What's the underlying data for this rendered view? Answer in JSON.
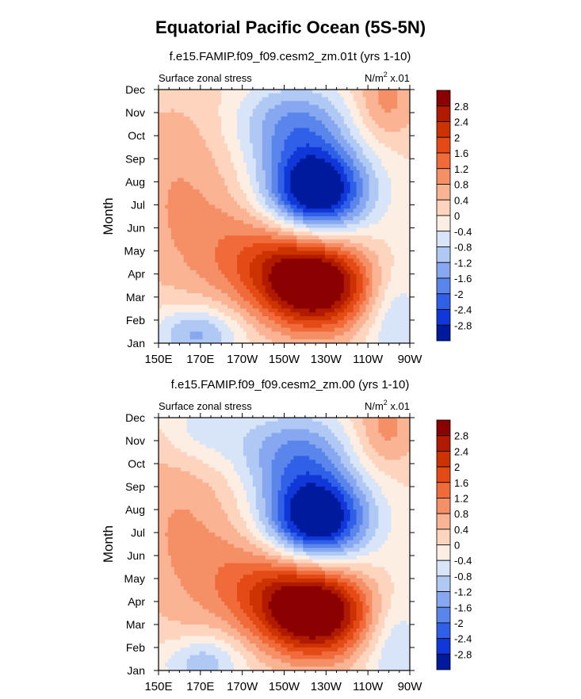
{
  "title": "Equatorial Pacific Ocean (5S-5N)",
  "chart_data": [
    {
      "type": "contour",
      "subtitle": "f.e15.FAMIP.f09_f09.cesm2_zm.01t (yrs 1-10)",
      "left_label": "Surface zonal stress",
      "right_label": {
        "base": "N/m",
        "sup": "2",
        "suffix": " x.01"
      },
      "ylabel": "Month",
      "xticks": [
        "150E",
        "170E",
        "170W",
        "150W",
        "130W",
        "110W",
        "90W"
      ],
      "yticks": [
        "Jan",
        "Feb",
        "Mar",
        "Apr",
        "May",
        "Jun",
        "Jul",
        "Aug",
        "Sep",
        "Oct",
        "Nov",
        "Dec"
      ],
      "xlim": [
        150,
        270
      ],
      "ylim": [
        1,
        12
      ],
      "positive_max": {
        "lon": 225,
        "month": 3.5,
        "value": 3.1
      },
      "negative_min": {
        "lon": 223,
        "month": 7.6,
        "value": -3.1
      }
    },
    {
      "type": "contour",
      "subtitle": "f.e15.FAMIP.f09_f09.cesm2_zm.00 (yrs 1-10)",
      "left_label": "Surface zonal stress",
      "right_label": {
        "base": "N/m",
        "sup": "2",
        "suffix": " x.01"
      },
      "ylabel": "Month",
      "xticks": [
        "150E",
        "170E",
        "170W",
        "150W",
        "130W",
        "110W",
        "90W"
      ],
      "yticks": [
        "Jan",
        "Feb",
        "Mar",
        "Apr",
        "May",
        "Jun",
        "Jul",
        "Aug",
        "Sep",
        "Oct",
        "Nov",
        "Dec"
      ],
      "xlim": [
        150,
        270
      ],
      "ylim": [
        1,
        12
      ],
      "positive_max": {
        "lon": 225,
        "month": 3.5,
        "value": 3.1
      },
      "negative_min": {
        "lon": 225,
        "month": 7.6,
        "value": -3.2
      }
    }
  ],
  "colorbar": {
    "labels": [
      "2.8",
      "2.4",
      "2",
      "1.6",
      "1.2",
      "0.8",
      "0.4",
      "0",
      "-0.4",
      "-0.8",
      "-1.2",
      "-1.6",
      "-2",
      "-2.4",
      "-2.8"
    ],
    "colors": [
      "#8b0000",
      "#b01a00",
      "#cc3300",
      "#e34a15",
      "#f06a3a",
      "#f58f66",
      "#fab393",
      "#fdd4bd",
      "#fdeee3",
      "#d8e4f8",
      "#b0c8f4",
      "#87a8f0",
      "#5a86ec",
      "#3160e8",
      "#1038d8",
      "#001a9e"
    ]
  }
}
